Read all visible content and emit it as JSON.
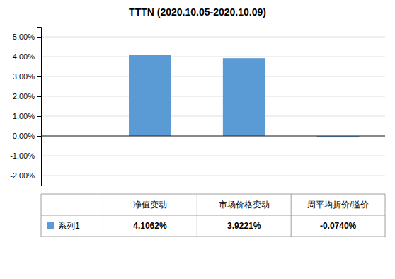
{
  "chart_data": {
    "type": "bar",
    "title": "TTTN  (2020.10.05-2020.10.09)",
    "categories": [
      "净值变动",
      "市场价格变动",
      "周平均折价/溢价"
    ],
    "series": [
      {
        "name": "系列1",
        "color": "#5B9BD5",
        "values": [
          0.041062,
          0.039221,
          -0.00074
        ],
        "value_labels": [
          "4.1062%",
          "3.9221%",
          "-0.0740%"
        ]
      }
    ],
    "ylim": [
      -0.025,
      0.055
    ],
    "yticks": [
      {
        "value": -0.02,
        "label": "-2.00%"
      },
      {
        "value": -0.01,
        "label": "-1.00%"
      },
      {
        "value": 0.0,
        "label": "0.00%"
      },
      {
        "value": 0.01,
        "label": "1.00%"
      },
      {
        "value": 0.02,
        "label": "2.00%"
      },
      {
        "value": 0.03,
        "label": "3.00%"
      },
      {
        "value": 0.04,
        "label": "4.00%"
      },
      {
        "value": 0.05,
        "label": "5.00%"
      }
    ],
    "grid": true,
    "legend": "bottom",
    "data_labels": true,
    "tick_labels": "y"
  }
}
